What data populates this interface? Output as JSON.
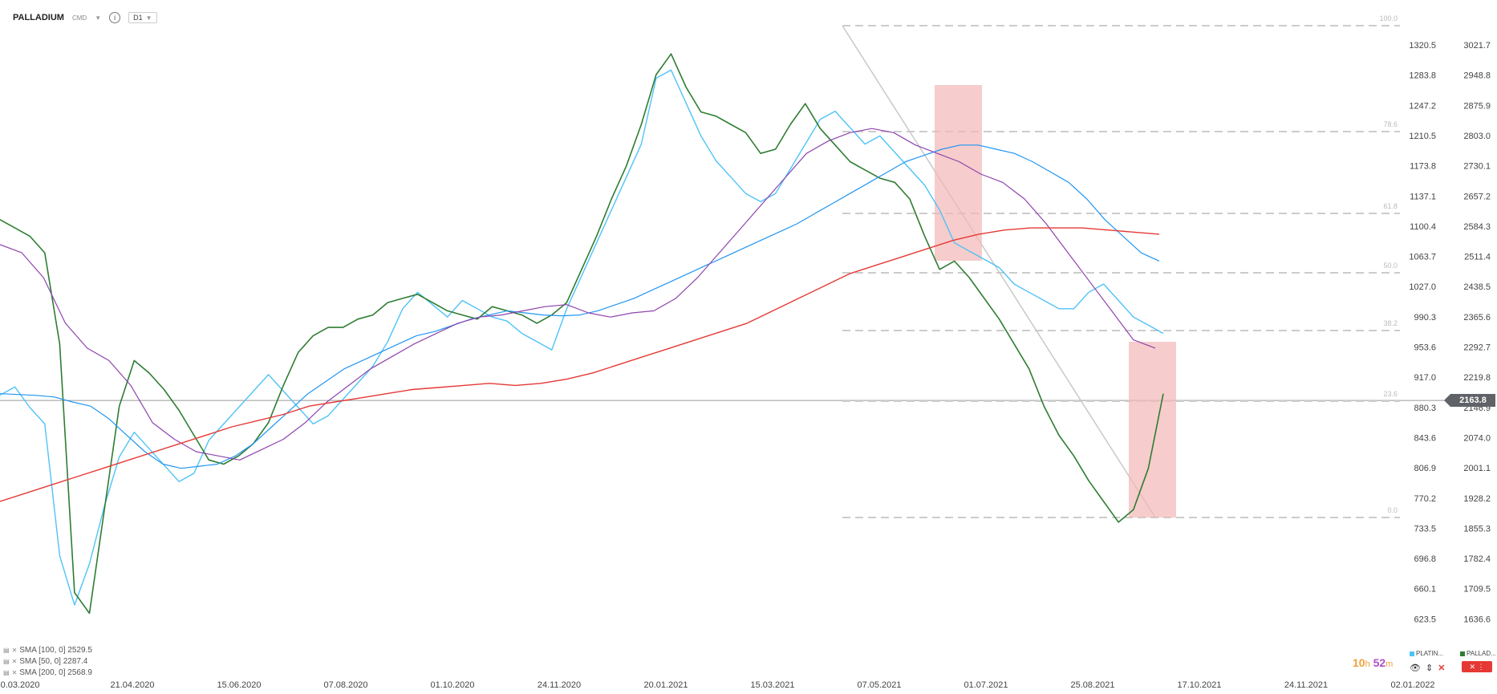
{
  "header": {
    "symbol": "PALLADIUM",
    "type": "CMD",
    "timeframe": "D1"
  },
  "indicators": [
    {
      "label": "SMA [100, 0] 2529.5",
      "color": "#2196f3"
    },
    {
      "label": "SMA [50, 0] 2287.4",
      "color": "#8e44ad"
    },
    {
      "label": "SMA [200, 0] 2568.9",
      "color": "#e53935"
    }
  ],
  "timer": {
    "hours": "10",
    "h_unit": "h",
    "minutes": "52",
    "m_unit": "m"
  },
  "series_tags": [
    {
      "label": "PLATIN...",
      "color": "#4fc3f7"
    },
    {
      "label": "PALLAD...",
      "color": "#2e7d32"
    }
  ],
  "current_price": "2163.8",
  "colors": {
    "platinum": "#4fc3f7",
    "up": "#2e7d32",
    "down": "#d32f2f",
    "sma100": "#2196f3",
    "sma50": "#8e44ad",
    "sma200": "#e53935",
    "fib": "#cccccc",
    "zone": "#f4b6b6"
  },
  "chart_data": {
    "type": "line",
    "x_tick_labels": [
      "10.03.2020",
      "21.04.2020",
      "15.06.2020",
      "07.08.2020",
      "01.10.2020",
      "24.11.2020",
      "20.01.2021",
      "15.03.2021",
      "07.05.2021",
      "01.07.2021",
      "25.08.2021",
      "17.10.2021",
      "24.11.2021",
      "02.01.2022"
    ],
    "y_left_ticks": [
      "1320.5",
      "1283.8",
      "1247.2",
      "1210.5",
      "1173.8",
      "1137.1",
      "1100.4",
      "1063.7",
      "1027.0",
      "990.3",
      "953.6",
      "917.0",
      "880.3",
      "843.6",
      "806.9",
      "770.2",
      "733.5",
      "696.8",
      "660.1",
      "623.5"
    ],
    "y_right_ticks": [
      "3021.7",
      "2948.8",
      "2875.9",
      "2803.0",
      "2730.1",
      "2657.2",
      "2584.3",
      "2511.4",
      "2438.5",
      "2365.6",
      "2292.7",
      "2219.8",
      "2146.9",
      "2074.0",
      "2001.1",
      "1928.2",
      "1855.3",
      "1782.4",
      "1709.5",
      "1636.6"
    ],
    "fib_levels": [
      "100.0",
      "78.6",
      "61.8",
      "50.0",
      "38.2",
      "23.6",
      "0.0"
    ],
    "series": [
      {
        "name": "PLATIN...",
        "axis": "left",
        "values": [
          895,
          905,
          880,
          860,
          700,
          640,
          690,
          760,
          820,
          850,
          830,
          810,
          790,
          800,
          840,
          860,
          880,
          900,
          920,
          900,
          880,
          860,
          870,
          890,
          910,
          930,
          960,
          1000,
          1020,
          1005,
          990,
          1010,
          1000,
          990,
          985,
          970,
          960,
          950,
          1000,
          1040,
          1080,
          1120,
          1160,
          1200,
          1280,
          1290,
          1250,
          1210,
          1180,
          1160,
          1140,
          1130,
          1140,
          1170,
          1200,
          1230,
          1240,
          1220,
          1200,
          1210,
          1190,
          1170,
          1150,
          1120,
          1080,
          1070,
          1060,
          1050,
          1030,
          1020,
          1010,
          1000,
          1000,
          1020,
          1030,
          1010,
          990,
          980,
          970
        ]
      },
      {
        "name": "PALLAD...",
        "axis": "right",
        "values": [
          2600,
          2580,
          2560,
          2520,
          2300,
          1700,
          1650,
          1900,
          2150,
          2260,
          2230,
          2190,
          2140,
          2080,
          2020,
          2010,
          2030,
          2060,
          2110,
          2200,
          2280,
          2320,
          2340,
          2340,
          2360,
          2370,
          2400,
          2410,
          2420,
          2400,
          2380,
          2370,
          2360,
          2390,
          2380,
          2370,
          2350,
          2370,
          2400,
          2480,
          2560,
          2650,
          2730,
          2830,
          2950,
          3000,
          2920,
          2860,
          2850,
          2830,
          2810,
          2760,
          2770,
          2830,
          2880,
          2820,
          2780,
          2740,
          2720,
          2700,
          2690,
          2650,
          2560,
          2480,
          2500,
          2460,
          2410,
          2360,
          2300,
          2240,
          2150,
          2080,
          2030,
          1970,
          1920,
          1870,
          1900,
          2000,
          2180
        ]
      },
      {
        "name": "SMA [100, 0] 2529.5",
        "axis": "right",
        "values": [
          2180,
          2178,
          2176,
          2172,
          2160,
          2150,
          2120,
          2080,
          2040,
          2010,
          2000,
          2005,
          2010,
          2030,
          2060,
          2100,
          2140,
          2180,
          2210,
          2240,
          2260,
          2280,
          2300,
          2320,
          2330,
          2345,
          2360,
          2370,
          2380,
          2375,
          2370,
          2368,
          2370,
          2380,
          2395,
          2410,
          2430,
          2450,
          2470,
          2490,
          2510,
          2530,
          2550,
          2570,
          2590,
          2615,
          2640,
          2665,
          2690,
          2715,
          2740,
          2755,
          2770,
          2780,
          2780,
          2770,
          2760,
          2740,
          2715,
          2690,
          2650,
          2600,
          2560,
          2520,
          2500
        ]
      },
      {
        "name": "SMA [50, 0] 2287.4",
        "axis": "right",
        "values": [
          2540,
          2520,
          2460,
          2350,
          2290,
          2260,
          2200,
          2110,
          2070,
          2040,
          2030,
          2020,
          2045,
          2070,
          2110,
          2160,
          2200,
          2240,
          2270,
          2300,
          2325,
          2350,
          2365,
          2370,
          2380,
          2390,
          2395,
          2375,
          2365,
          2375,
          2380,
          2410,
          2460,
          2520,
          2580,
          2640,
          2700,
          2760,
          2790,
          2810,
          2820,
          2810,
          2780,
          2760,
          2740,
          2710,
          2690,
          2650,
          2590,
          2520,
          2450,
          2380,
          2310,
          2290
        ]
      },
      {
        "name": "SMA [200, 0] 2568.9",
        "axis": "right",
        "values": [
          1920,
          1940,
          1960,
          1980,
          2000,
          2020,
          2040,
          2060,
          2080,
          2100,
          2115,
          2130,
          2150,
          2160,
          2170,
          2180,
          2190,
          2195,
          2200,
          2205,
          2200,
          2205,
          2215,
          2230,
          2250,
          2270,
          2290,
          2310,
          2330,
          2350,
          2380,
          2410,
          2440,
          2470,
          2490,
          2510,
          2530,
          2550,
          2565,
          2575,
          2580,
          2580,
          2580,
          2575,
          2570,
          2565
        ]
      }
    ]
  }
}
